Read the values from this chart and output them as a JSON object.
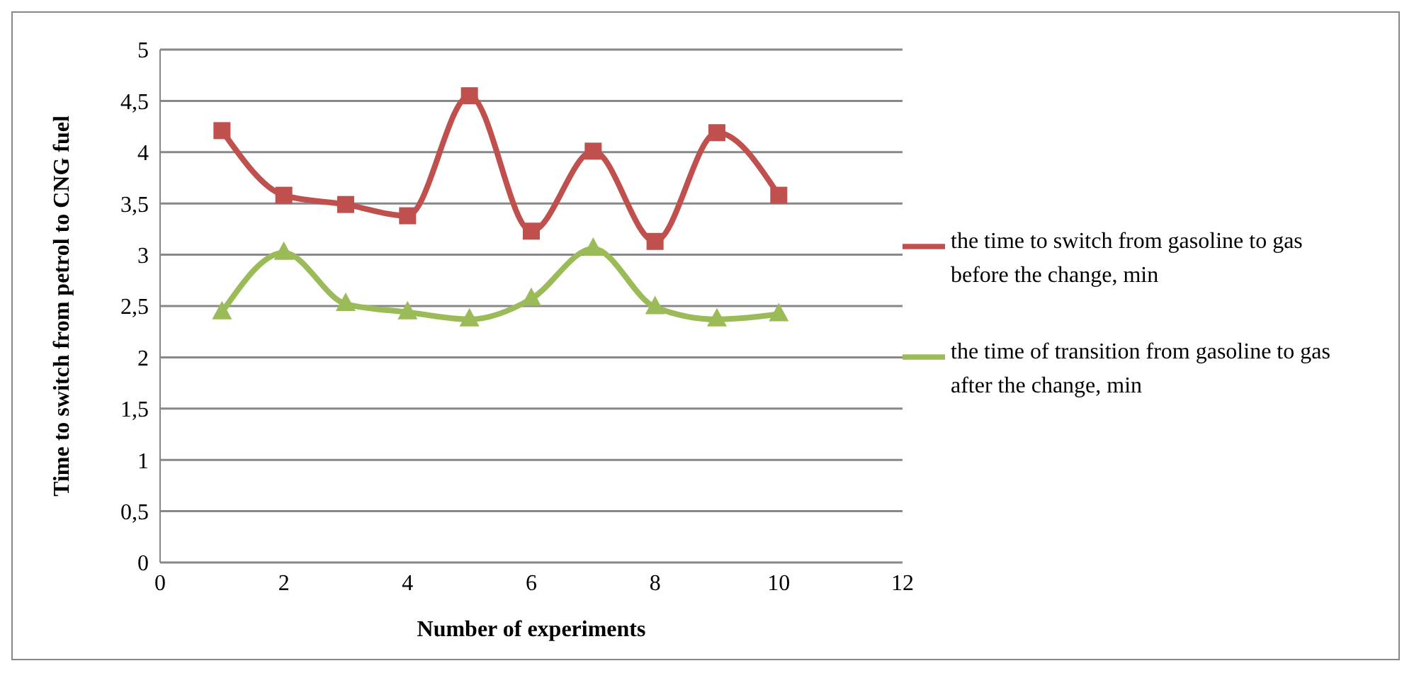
{
  "chart_data": {
    "type": "line",
    "xlabel": "Number  of experiments",
    "ylabel": "Time to switch from petrol  to CNG fuel",
    "xlim": [
      0,
      12
    ],
    "xticks": [
      0,
      2,
      4,
      6,
      8,
      10,
      12
    ],
    "ylim": [
      0,
      5
    ],
    "yticks": [
      {
        "value": 0,
        "label": "0"
      },
      {
        "value": 0.5,
        "label": "0,5"
      },
      {
        "value": 1,
        "label": "1"
      },
      {
        "value": 1.5,
        "label": "1,5"
      },
      {
        "value": 2,
        "label": "2"
      },
      {
        "value": 2.5,
        "label": "2,5"
      },
      {
        "value": 3,
        "label": "3"
      },
      {
        "value": 3.5,
        "label": "3,5"
      },
      {
        "value": 4,
        "label": "4"
      },
      {
        "value": 4.5,
        "label": "4,5"
      },
      {
        "value": 5,
        "label": "5"
      }
    ],
    "grid": "y",
    "legend": "right",
    "x": [
      1,
      2,
      3,
      4,
      5,
      6,
      7,
      8,
      9,
      10
    ],
    "series": [
      {
        "name": "the time to switch from gasoline to gas before the change, min",
        "color": "#c0504d",
        "marker": "square",
        "values": [
          4.21,
          3.58,
          3.49,
          3.38,
          4.55,
          3.23,
          4.01,
          3.13,
          4.19,
          3.58
        ]
      },
      {
        "name": "the time of transition from gasoline to gas after the change, min",
        "color": "#9bbb59",
        "marker": "triangle",
        "values": [
          2.44,
          3.02,
          2.52,
          2.44,
          2.37,
          2.57,
          3.06,
          2.49,
          2.37,
          2.42
        ]
      }
    ]
  }
}
